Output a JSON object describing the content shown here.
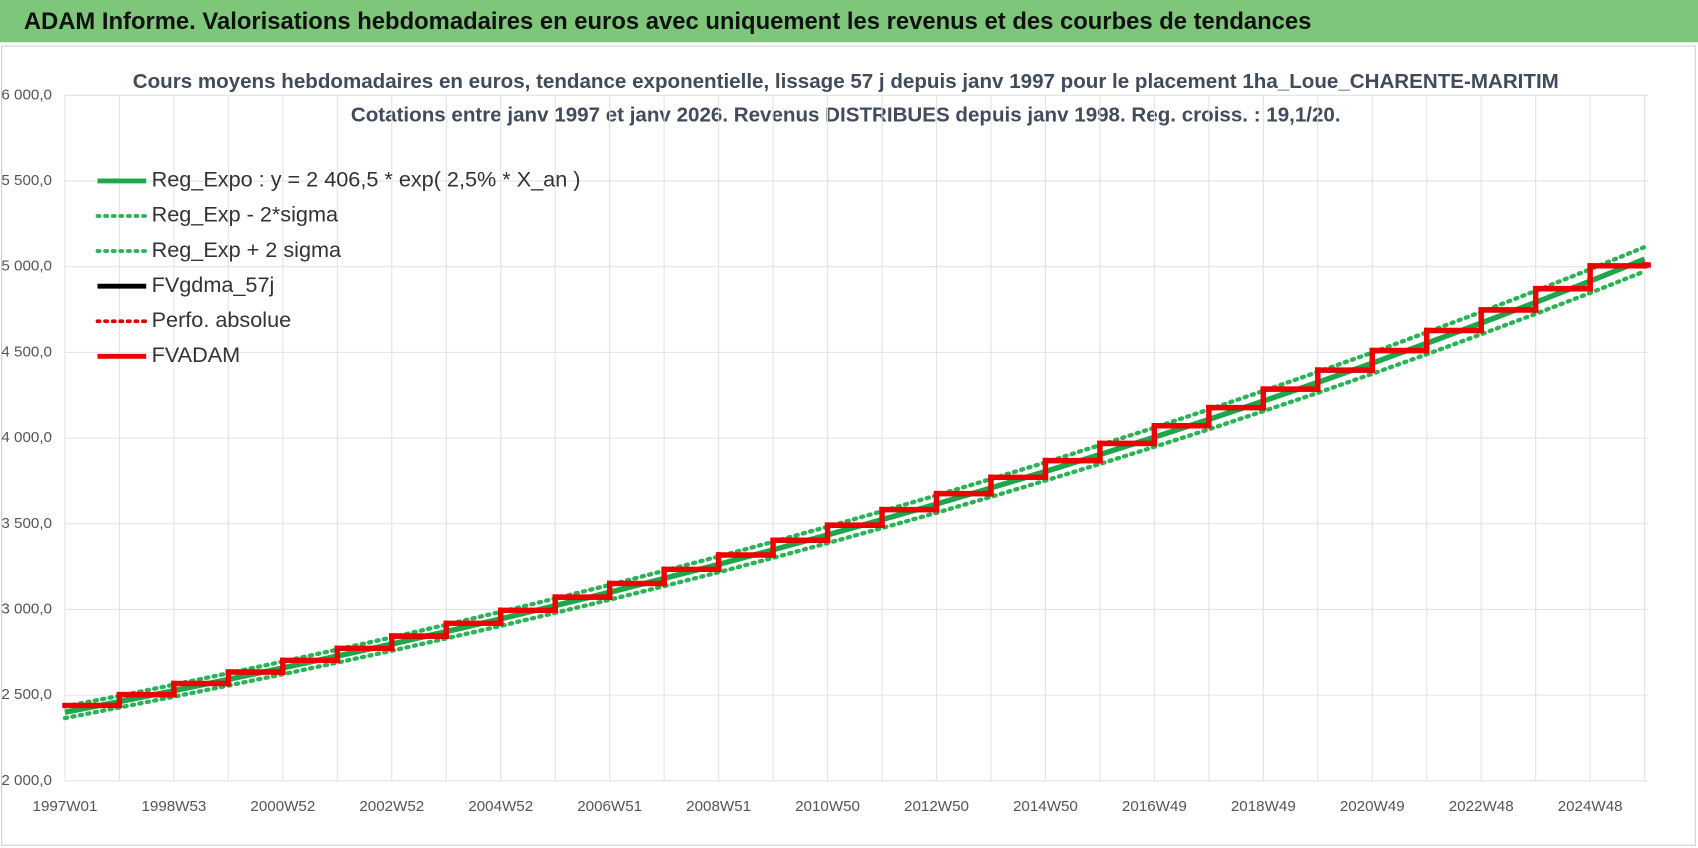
{
  "header": "ADAM Informe. Valorisations hebdomadaires en euros avec uniquement les revenus et des courbes de tendances",
  "chart_data": {
    "type": "line",
    "title": "Cours moyens hebdomadaires en euros, tendance exponentielle, lissage 57 j depuis janv 1997  pour le placement 1ha_Loue_CHARENTE-MARITIM",
    "subtitle": "Cotations entre janv 1997 et janv 2026. Revenus DISTRIBUES depuis janv 1998.  Reg. croiss. : 19,1/20.",
    "categories": [
      "1997W01",
      null,
      "1998W53",
      null,
      "2000W52",
      null,
      "2002W52",
      null,
      "2004W52",
      null,
      "2006W51",
      null,
      "2008W51",
      null,
      "2010W50",
      null,
      "2012W50",
      null,
      "2014W50",
      null,
      "2016W49",
      null,
      "2018W49",
      null,
      "2020W49",
      null,
      "2022W48",
      null,
      "2024W48",
      null
    ],
    "ylim": [
      2000,
      6000
    ],
    "yticks": [
      {
        "value": 2000,
        "label": "2 000,0"
      },
      {
        "value": 2500,
        "label": "2 500,0"
      },
      {
        "value": 3000,
        "label": "3 000,0"
      },
      {
        "value": 3500,
        "label": "3 500,0"
      },
      {
        "value": 4000,
        "label": "4 000,0"
      },
      {
        "value": 4500,
        "label": "4 500,0"
      },
      {
        "value": 5000,
        "label": "5 000,0"
      },
      {
        "value": 5500,
        "label": "5 500,0"
      },
      {
        "value": 6000,
        "label": "6 000,0"
      }
    ],
    "grid": true,
    "legend": "upper-left",
    "series": [
      {
        "name": "Reg_Expo : y = 2 406,5 * exp( 2,5% *  X_an )",
        "color": "#1fa64a",
        "style": "solid",
        "draw": "line",
        "values": [
          2400,
          2462,
          2526,
          2592,
          2659,
          2728,
          2798,
          2871,
          2945,
          3022,
          3100,
          3181,
          3263,
          3348,
          3435,
          3524,
          3615,
          3709,
          3805,
          3904,
          4005,
          4109,
          4216,
          4325,
          4437,
          4553,
          4671,
          4792,
          4916,
          5044
        ]
      },
      {
        "name": "Reg_Exp - 2*sigma",
        "color": "#2cb358",
        "style": "dotted",
        "draw": "line",
        "values": [
          2366,
          2428,
          2491,
          2556,
          2622,
          2690,
          2759,
          2831,
          2904,
          2980,
          3057,
          3136,
          3217,
          3301,
          3387,
          3475,
          3564,
          3657,
          3752,
          3849,
          3949,
          4051,
          4157,
          4264,
          4375,
          4489,
          4606,
          4725,
          4847,
          4973
        ]
      },
      {
        "name": "Reg_Exp + 2 sigma",
        "color": "#2cb358",
        "style": "dotted",
        "draw": "line",
        "values": [
          2434,
          2496,
          2561,
          2628,
          2696,
          2766,
          2837,
          2911,
          2986,
          3064,
          3143,
          3226,
          3309,
          3395,
          3483,
          3573,
          3666,
          3761,
          3858,
          3959,
          4061,
          4167,
          4275,
          4386,
          4499,
          4617,
          4736,
          4859,
          4985,
          5115
        ]
      },
      {
        "name": "FVgdma_57j",
        "color": "#000000",
        "style": "solid",
        "draw": "step",
        "values": [
          2438,
          2500,
          2565,
          2632,
          2700,
          2770,
          2842,
          2916,
          2992,
          3069,
          3149,
          3231,
          3315,
          3401,
          3489,
          3580,
          3673,
          3768,
          3866,
          3966,
          4069,
          4175,
          4283,
          4394,
          4508,
          4625,
          4745,
          4869,
          5002,
          5008
        ]
      },
      {
        "name": "Perfo. absolue",
        "color": "#e00000",
        "style": "dotted",
        "draw": "line",
        "values": [
          null,
          null,
          null,
          null,
          null,
          null,
          null,
          null,
          null,
          null,
          null,
          null,
          null,
          null,
          null,
          null,
          null,
          null,
          null,
          null,
          null,
          null,
          null,
          null,
          null,
          null,
          null,
          null,
          null,
          null
        ]
      },
      {
        "name": "FVADAM",
        "color": "#ee0000",
        "style": "solid",
        "draw": "step",
        "values": [
          2440,
          2503,
          2568,
          2635,
          2703,
          2773,
          2845,
          2919,
          2995,
          3072,
          3152,
          3234,
          3318,
          3404,
          3492,
          3583,
          3676,
          3771,
          3869,
          3969,
          4072,
          4178,
          4286,
          4397,
          4511,
          4628,
          4748,
          4872,
          5005,
          5010
        ]
      }
    ]
  }
}
